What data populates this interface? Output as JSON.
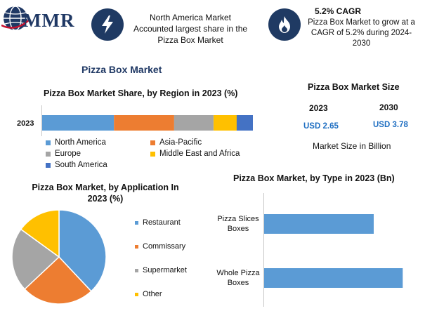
{
  "brand": {
    "logo_text": "MMR",
    "colors": {
      "navy": "#1f3864",
      "accent_red": "#c8102e",
      "icon_bg": "#1f3a63"
    }
  },
  "header": {
    "fact1": {
      "icon": "lightning-icon",
      "text": "North America Market Accounted largest share in the Pizza Box Market"
    },
    "fact2": {
      "icon": "flame-icon",
      "title": "5.2% CAGR",
      "text": "Pizza Box Market to grow at a CAGR of 5.2% during 2024-2030"
    }
  },
  "main_title": "Pizza Box Market",
  "market_size": {
    "title": "Pizza Box Market Size",
    "years": [
      "2023",
      "2030"
    ],
    "values": [
      "USD 2.65",
      "USD 3.78"
    ],
    "note": "Market Size in Billion"
  },
  "chart_data": [
    {
      "type": "bar",
      "orientation": "horizontal",
      "stacked": true,
      "title": "Pizza Box Market Share, by Region in 2023 (%)",
      "categories": [
        "2023"
      ],
      "series": [
        {
          "name": "North America",
          "values": [
            31
          ],
          "color": "#5b9bd5"
        },
        {
          "name": "Asia-Pacific",
          "values": [
            26
          ],
          "color": "#ed7d31"
        },
        {
          "name": "Europe",
          "values": [
            17
          ],
          "color": "#a5a5a5"
        },
        {
          "name": "Middle East and Africa",
          "values": [
            10
          ],
          "color": "#ffc000"
        },
        {
          "name": "South America",
          "values": [
            7
          ],
          "color": "#4472c4"
        }
      ],
      "xlim": [
        0,
        91
      ],
      "legend": "bottom"
    },
    {
      "type": "pie",
      "title": "Pizza Box Market, by Application In 2023 (%)",
      "categories": [
        "Restaurant",
        "Commissary",
        "Supermarket",
        "Other"
      ],
      "values": [
        38,
        25,
        22,
        15
      ],
      "colors": [
        "#5b9bd5",
        "#ed7d31",
        "#a5a5a5",
        "#ffc000"
      ],
      "legend": "right"
    },
    {
      "type": "bar",
      "orientation": "horizontal",
      "title": "Pizza Box Market, by Type in 2023 (Bn)",
      "categories": [
        "Pizza Slices Boxes",
        "Whole Pizza Boxes"
      ],
      "values": [
        1.17,
        1.48
      ],
      "color": "#5b9bd5",
      "xlim": [
        0,
        1.65
      ]
    }
  ]
}
